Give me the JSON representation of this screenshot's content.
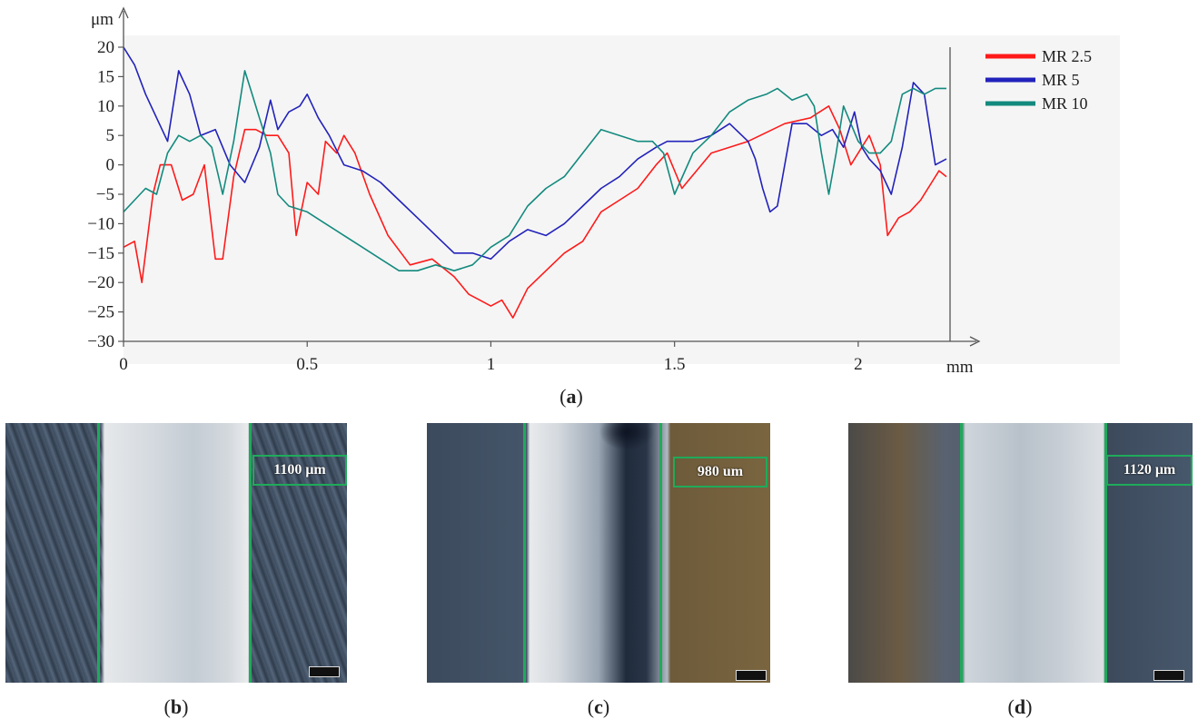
{
  "chart_data": {
    "type": "line",
    "xlabel": "mm",
    "ylabel": "μm",
    "xlim": [
      0,
      2.25
    ],
    "ylim": [
      -30,
      20
    ],
    "xticks": [
      0,
      0.5,
      1,
      1.5,
      2
    ],
    "xtick_labels": [
      "0",
      "0.5",
      "1",
      "1.5",
      "2"
    ],
    "yticks": [
      20,
      15,
      10,
      5,
      0,
      -5,
      -10,
      -15,
      -20,
      -25,
      -30
    ],
    "ytick_labels": [
      "20",
      "15",
      "10",
      "5",
      "0",
      "−5",
      "−10",
      "−15",
      "−20",
      "−25",
      "−30"
    ],
    "grid": false,
    "legend_position": "top-right",
    "series": [
      {
        "name": "MR 2.5",
        "color": "#ff1a1a",
        "x": [
          0,
          0.03,
          0.05,
          0.08,
          0.1,
          0.13,
          0.16,
          0.19,
          0.22,
          0.25,
          0.27,
          0.3,
          0.33,
          0.36,
          0.39,
          0.42,
          0.45,
          0.47,
          0.5,
          0.53,
          0.55,
          0.58,
          0.6,
          0.63,
          0.67,
          0.72,
          0.78,
          0.84,
          0.9,
          0.94,
          0.97,
          1.0,
          1.03,
          1.06,
          1.1,
          1.15,
          1.2,
          1.25,
          1.3,
          1.35,
          1.4,
          1.45,
          1.48,
          1.52,
          1.6,
          1.7,
          1.8,
          1.87,
          1.92,
          1.95,
          1.98,
          2.0,
          2.03,
          2.06,
          2.08,
          2.11,
          2.14,
          2.17,
          2.2,
          2.22,
          2.24
        ],
        "y": [
          -14,
          -13,
          -20,
          -5,
          0,
          0,
          -6,
          -5,
          0,
          -16,
          -16,
          -2,
          6,
          6,
          5,
          5,
          2,
          -12,
          -3,
          -5,
          4,
          2,
          5,
          2,
          -5,
          -12,
          -17,
          -16,
          -19,
          -22,
          -23,
          -24,
          -23,
          -26,
          -21,
          -18,
          -15,
          -13,
          -8,
          -6,
          -4,
          0,
          2,
          -4,
          2,
          4,
          7,
          8,
          10,
          6,
          0,
          2,
          5,
          0,
          -12,
          -9,
          -8,
          -6,
          -3,
          -1,
          -2
        ]
      },
      {
        "name": "MR 5",
        "color": "#2222bb",
        "x": [
          0,
          0.03,
          0.06,
          0.09,
          0.12,
          0.15,
          0.18,
          0.21,
          0.25,
          0.29,
          0.33,
          0.37,
          0.4,
          0.42,
          0.45,
          0.48,
          0.5,
          0.53,
          0.56,
          0.6,
          0.65,
          0.7,
          0.75,
          0.8,
          0.85,
          0.9,
          0.95,
          1.0,
          1.05,
          1.1,
          1.15,
          1.2,
          1.25,
          1.3,
          1.35,
          1.4,
          1.45,
          1.48,
          1.5,
          1.55,
          1.6,
          1.65,
          1.7,
          1.72,
          1.74,
          1.76,
          1.78,
          1.82,
          1.86,
          1.9,
          1.93,
          1.96,
          1.99,
          2.01,
          2.03,
          2.06,
          2.09,
          2.12,
          2.15,
          2.18,
          2.21,
          2.24
        ],
        "y": [
          20,
          17,
          12,
          8,
          4,
          16,
          12,
          5,
          6,
          0,
          -3,
          3,
          11,
          6,
          9,
          10,
          12,
          8,
          5,
          0,
          -1,
          -3,
          -6,
          -9,
          -12,
          -15,
          -15,
          -16,
          -13,
          -11,
          -12,
          -10,
          -7,
          -4,
          -2,
          1,
          3,
          4,
          4,
          4,
          5,
          7,
          4,
          1,
          -4,
          -8,
          -7,
          7,
          7,
          5,
          6,
          3,
          9,
          3,
          1,
          -1,
          -5,
          3,
          14,
          12,
          0,
          1
        ]
      },
      {
        "name": "MR 10",
        "color": "#138a7e",
        "x": [
          0,
          0.03,
          0.06,
          0.09,
          0.12,
          0.15,
          0.18,
          0.21,
          0.24,
          0.27,
          0.3,
          0.33,
          0.35,
          0.37,
          0.4,
          0.42,
          0.45,
          0.5,
          0.55,
          0.6,
          0.65,
          0.7,
          0.75,
          0.8,
          0.85,
          0.9,
          0.95,
          1.0,
          1.05,
          1.1,
          1.15,
          1.2,
          1.25,
          1.3,
          1.35,
          1.4,
          1.44,
          1.47,
          1.5,
          1.55,
          1.6,
          1.65,
          1.7,
          1.75,
          1.78,
          1.82,
          1.86,
          1.88,
          1.9,
          1.92,
          1.94,
          1.96,
          2.0,
          2.03,
          2.06,
          2.09,
          2.12,
          2.15,
          2.18,
          2.21,
          2.24
        ],
        "y": [
          -8,
          -6,
          -4,
          -5,
          2,
          5,
          4,
          5,
          3,
          -5,
          4,
          16,
          12,
          8,
          2,
          -5,
          -7,
          -8,
          -10,
          -12,
          -14,
          -16,
          -18,
          -18,
          -17,
          -18,
          -17,
          -14,
          -12,
          -7,
          -4,
          -2,
          2,
          6,
          5,
          4,
          4,
          2,
          -5,
          2,
          5,
          9,
          11,
          12,
          13,
          11,
          12,
          10,
          2,
          -5,
          2,
          10,
          4,
          2,
          2,
          4,
          12,
          13,
          12,
          13,
          13
        ]
      }
    ]
  },
  "micrographs": [
    {
      "label": "1100 μm"
    },
    {
      "label": "980 um"
    },
    {
      "label": "1120 μm"
    }
  ],
  "captions": {
    "a": "a",
    "b": "b",
    "c": "c",
    "d": "d"
  }
}
